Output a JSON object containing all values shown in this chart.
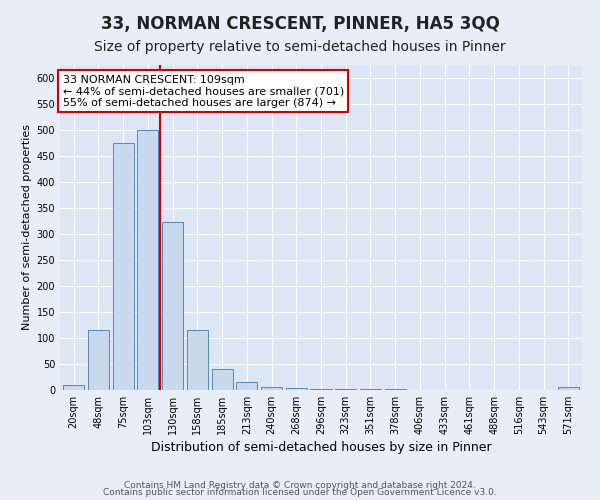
{
  "title": "33, NORMAN CRESCENT, PINNER, HA5 3QQ",
  "subtitle": "Size of property relative to semi-detached houses in Pinner",
  "xlabel": "Distribution of semi-detached houses by size in Pinner",
  "ylabel": "Number of semi-detached properties",
  "footnote1": "Contains HM Land Registry data © Crown copyright and database right 2024.",
  "footnote2": "Contains public sector information licensed under the Open Government Licence v3.0.",
  "bar_labels": [
    "20sqm",
    "48sqm",
    "75sqm",
    "103sqm",
    "130sqm",
    "158sqm",
    "185sqm",
    "213sqm",
    "240sqm",
    "268sqm",
    "296sqm",
    "323sqm",
    "351sqm",
    "378sqm",
    "406sqm",
    "433sqm",
    "461sqm",
    "488sqm",
    "516sqm",
    "543sqm",
    "571sqm"
  ],
  "bar_values": [
    10,
    115,
    475,
    500,
    323,
    115,
    40,
    15,
    5,
    3,
    2,
    1,
    1,
    1,
    0,
    0,
    0,
    0,
    0,
    0,
    5
  ],
  "bar_color": "#c9d9ed",
  "bar_edge_color": "#5588bb",
  "vline_color": "#cc0000",
  "annotation_title": "33 NORMAN CRESCENT: 109sqm",
  "annotation_line1": "← 44% of semi-detached houses are smaller (701)",
  "annotation_line2": "55% of semi-detached houses are larger (874) →",
  "annotation_box_color": "#cc0000",
  "annotation_bg": "#ffffff",
  "ylim": [
    0,
    625
  ],
  "yticks": [
    0,
    50,
    100,
    150,
    200,
    250,
    300,
    350,
    400,
    450,
    500,
    550,
    600
  ],
  "background_color": "#dce6f5",
  "plot_bg": "#dce6f5",
  "outer_bg": "#e8eef7",
  "title_fontsize": 12,
  "subtitle_fontsize": 10,
  "xlabel_fontsize": 9,
  "ylabel_fontsize": 8,
  "tick_fontsize": 7,
  "annotation_fontsize": 8,
  "footnote_fontsize": 6.5
}
